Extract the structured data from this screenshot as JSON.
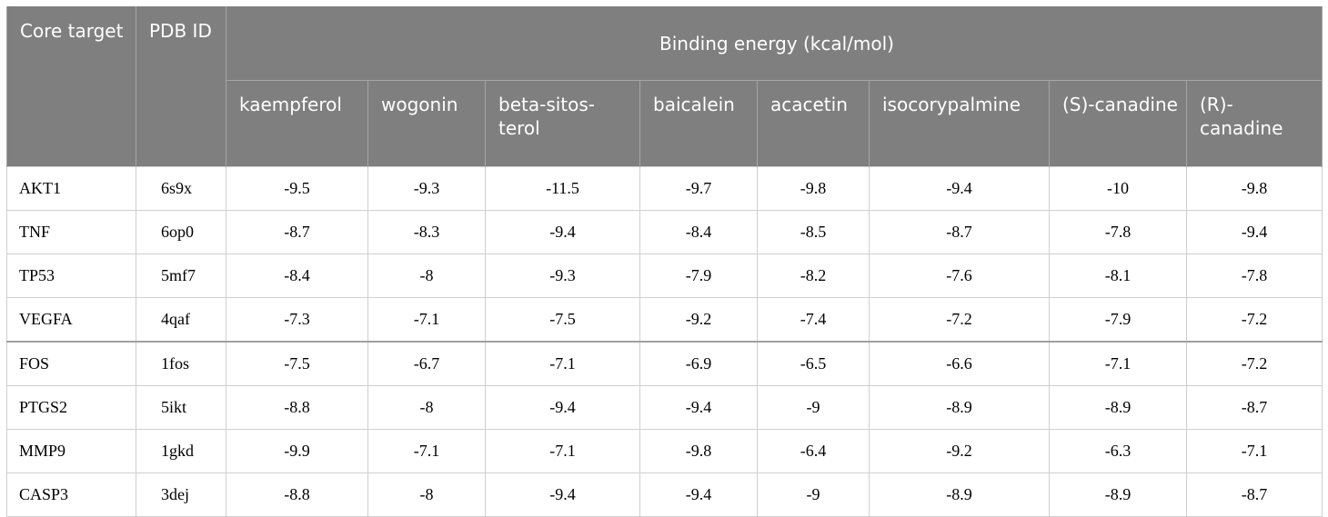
{
  "table": {
    "col_core": "Core target",
    "col_pdb": "PDB ID",
    "col_energy": "Binding energy (kcal/mol)",
    "compounds": [
      "kaempferol",
      "wogonin",
      "beta-sitos-terol",
      "baicalein",
      "acacetin",
      "isocorypalmine",
      "(S)-canadine",
      "(R)-canadine"
    ],
    "rows": [
      {
        "target": "AKT1",
        "pdb": "6s9x",
        "values": [
          "-9.5",
          "-9.3",
          "-11.5",
          "-9.7",
          "-9.8",
          "-9.4",
          "-10",
          "-9.8"
        ]
      },
      {
        "target": "TNF",
        "pdb": "6op0",
        "values": [
          "-8.7",
          "-8.3",
          "-9.4",
          "-8.4",
          "-8.5",
          "-8.7",
          "-7.8",
          "-9.4"
        ]
      },
      {
        "target": "TP53",
        "pdb": "5mf7",
        "values": [
          "-8.4",
          "-8",
          "-9.3",
          "-7.9",
          "-8.2",
          "-7.6",
          "-8.1",
          "-7.8"
        ]
      },
      {
        "target": "VEGFA",
        "pdb": "4qaf",
        "values": [
          "-7.3",
          "-7.1",
          "-7.5",
          "-9.2",
          "-7.4",
          "-7.2",
          "-7.9",
          "-7.2"
        ]
      },
      {
        "target": "FOS",
        "pdb": "1fos",
        "values": [
          "-7.5",
          "-6.7",
          "-7.1",
          "-6.9",
          "-6.5",
          "-6.6",
          "-7.1",
          "-7.2"
        ]
      },
      {
        "target": "PTGS2",
        "pdb": "5ikt",
        "values": [
          "-8.8",
          "-8",
          "-9.4",
          "-9.4",
          "-9",
          "-8.9",
          "-8.9",
          "-8.7"
        ]
      },
      {
        "target": "MMP9",
        "pdb": "1gkd",
        "values": [
          "-9.9",
          "-7.1",
          "-7.1",
          "-9.8",
          "-6.4",
          "-9.2",
          "-6.3",
          "-7.1"
        ]
      },
      {
        "target": "CASP3",
        "pdb": "3dej",
        "values": [
          "-8.8",
          "-8",
          "-9.4",
          "-9.4",
          "-9",
          "-8.9",
          "-8.9",
          "-8.7"
        ]
      }
    ]
  }
}
